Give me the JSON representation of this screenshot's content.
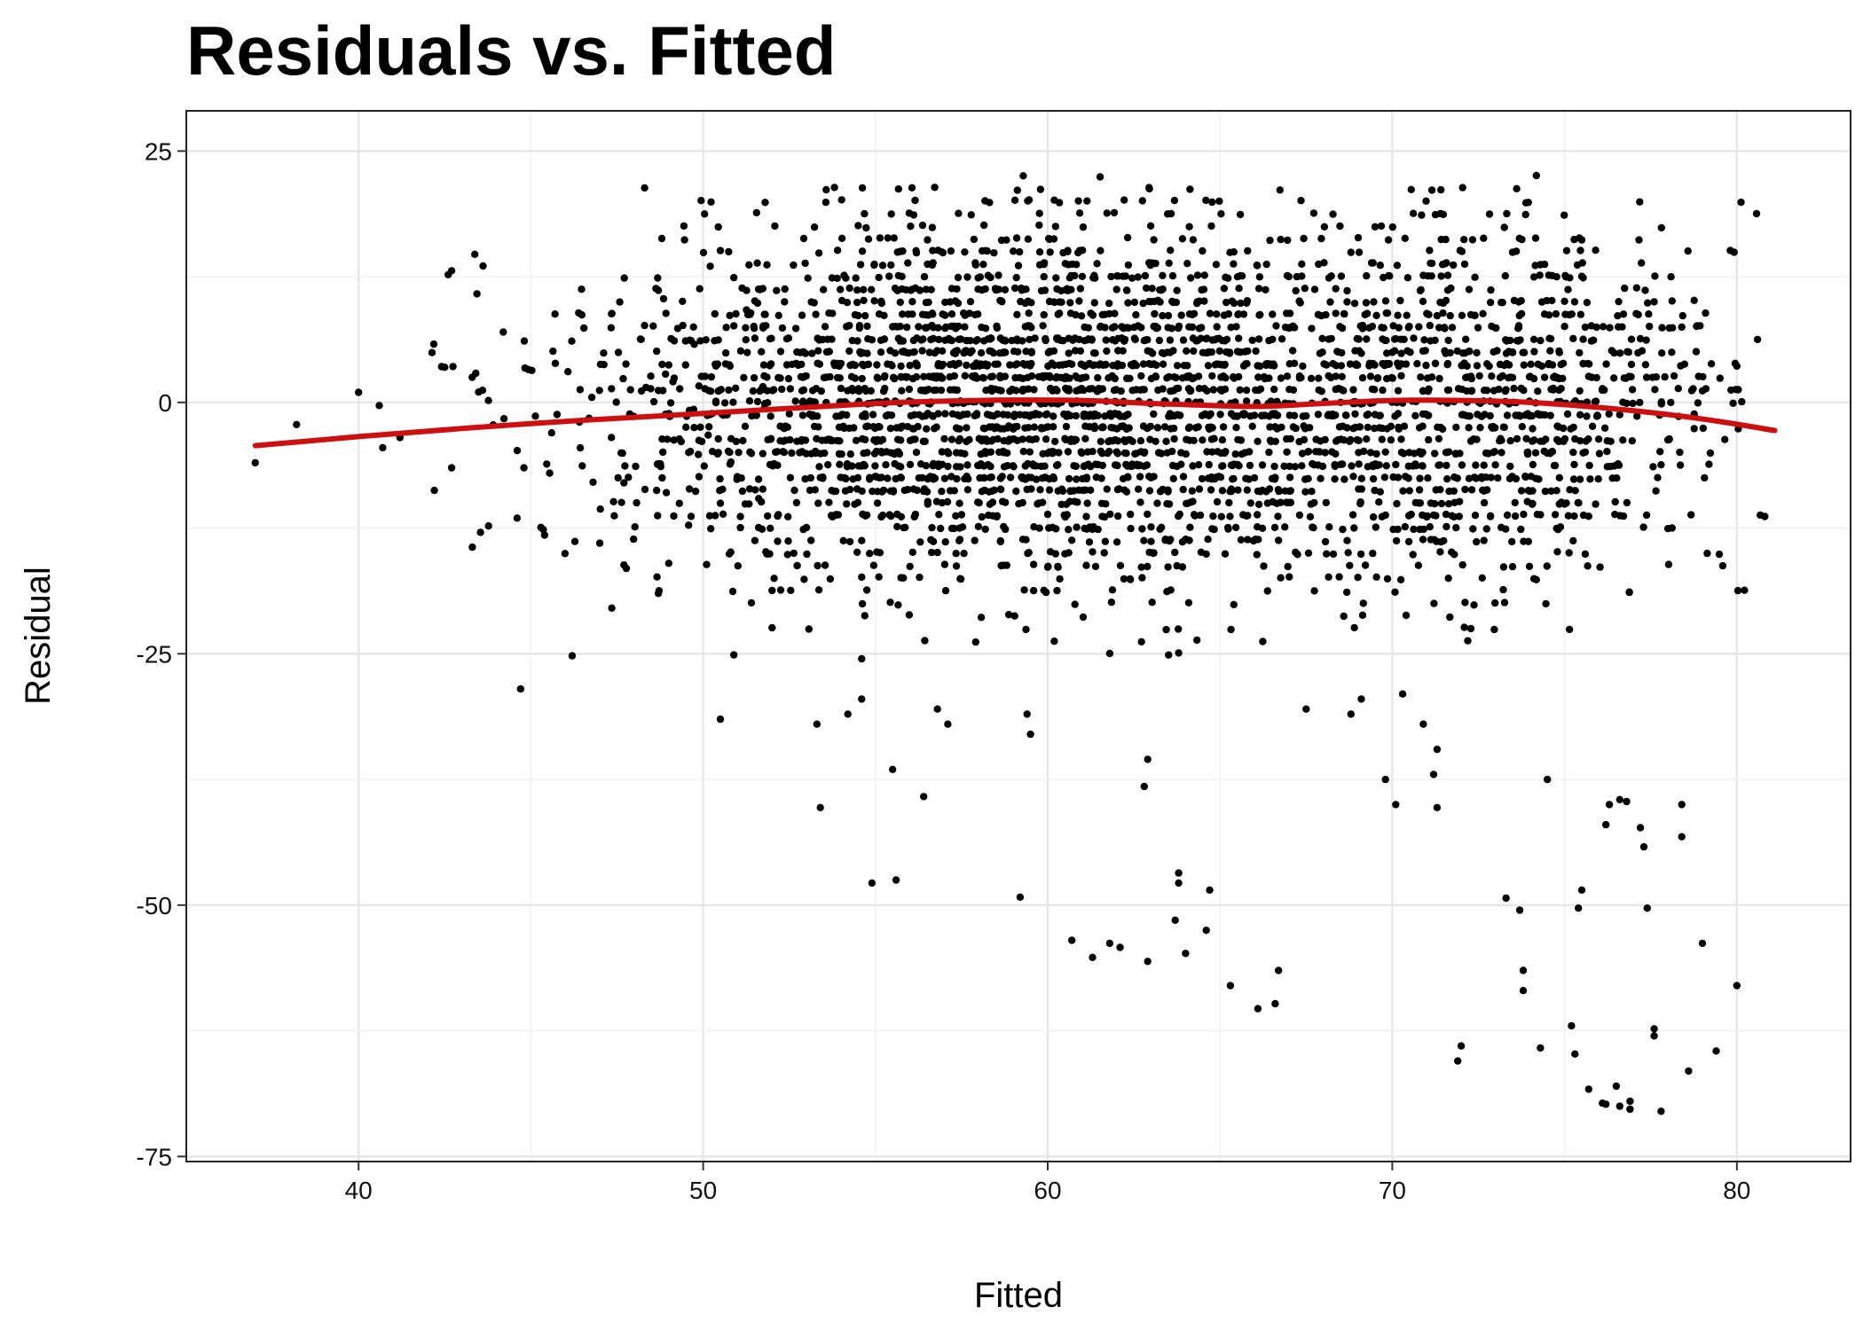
{
  "chart_data": {
    "type": "scatter",
    "title": "Residuals vs. Fitted",
    "xlabel": "Fitted",
    "ylabel": "Residual",
    "xlim": [
      35,
      83.3
    ],
    "ylim": [
      -75.5,
      29
    ],
    "x_ticks": [
      40,
      50,
      60,
      70,
      80
    ],
    "y_ticks": [
      25,
      0,
      -25,
      -50,
      -75
    ],
    "x_tick_labels": [
      "40",
      "50",
      "60",
      "70",
      "80"
    ],
    "y_tick_labels": [
      "25",
      "0",
      "-25",
      "-50",
      "-75"
    ],
    "grid": true,
    "legend": "none",
    "colors": {
      "points": "#000000",
      "smooth": "#cc1010"
    },
    "series": [
      {
        "type": "smooth",
        "x": [
          37,
          40,
          45,
          50,
          55,
          58,
          61,
          63,
          66,
          68,
          70,
          72,
          74,
          76,
          78,
          79.5,
          81.1
        ],
        "y": [
          -4.3,
          -3.4,
          -2.1,
          -1.1,
          -0.1,
          0.2,
          0.2,
          -0.1,
          -0.4,
          -0.1,
          0.2,
          0.2,
          0,
          -0.5,
          -1.2,
          -1.9,
          -2.8
        ]
      }
    ],
    "outliers": [
      [
        37,
        -6
      ],
      [
        38.2,
        -2.2
      ],
      [
        40,
        1
      ],
      [
        40.6,
        -0.3
      ],
      [
        40.7,
        -4.5
      ],
      [
        41.2,
        -3.5
      ],
      [
        42.5,
        3.5
      ],
      [
        42.7,
        -6.5
      ],
      [
        43.3,
        -14.4
      ],
      [
        43.4,
        2.9
      ],
      [
        44.2,
        7
      ],
      [
        44.6,
        -11.5
      ],
      [
        44.7,
        -28.5
      ],
      [
        44.8,
        -6.5
      ],
      [
        45.4,
        -13.2
      ],
      [
        46.2,
        -25.2
      ],
      [
        47,
        -14
      ],
      [
        47.7,
        -8
      ],
      [
        48.7,
        -19
      ],
      [
        49,
        -16
      ],
      [
        50.5,
        -31.5
      ],
      [
        53.3,
        -32
      ],
      [
        53.4,
        -40.3
      ],
      [
        54.2,
        -31
      ],
      [
        54.6,
        -29.5
      ],
      [
        54.6,
        -25.5
      ],
      [
        54.9,
        -47.8
      ],
      [
        55.5,
        -36.5
      ],
      [
        55.6,
        -47.5
      ],
      [
        56.4,
        -39.2
      ],
      [
        56.8,
        -30.5
      ],
      [
        57.1,
        -32
      ],
      [
        59.2,
        -49.2
      ],
      [
        59.4,
        -31
      ],
      [
        59.5,
        -33
      ],
      [
        60.7,
        -53.5
      ],
      [
        61.3,
        -55.2
      ],
      [
        61.8,
        -53.8
      ],
      [
        62.1,
        -54.2
      ],
      [
        62.9,
        -55.6
      ],
      [
        62.9,
        -35.5
      ],
      [
        62.8,
        -38.2
      ],
      [
        63.7,
        -51.5
      ],
      [
        63.8,
        -46.8
      ],
      [
        63.8,
        -47.8
      ],
      [
        64.0,
        -54.8
      ],
      [
        64.6,
        -52.5
      ],
      [
        64.7,
        -48.5
      ],
      [
        65.3,
        -58
      ],
      [
        66.1,
        -60.3
      ],
      [
        66.6,
        -59.8
      ],
      [
        66.7,
        -56.5
      ],
      [
        67.5,
        -30.5
      ],
      [
        68.8,
        -31
      ],
      [
        69.1,
        -29.5
      ],
      [
        69.8,
        -37.5
      ],
      [
        70.1,
        -40
      ],
      [
        70.3,
        -29
      ],
      [
        70.9,
        -32
      ],
      [
        71.2,
        -37
      ],
      [
        71.3,
        -40.3
      ],
      [
        71.3,
        -34.5
      ],
      [
        71.9,
        -65.5
      ],
      [
        72.0,
        -64
      ],
      [
        73.3,
        -49.3
      ],
      [
        73.7,
        -50.5
      ],
      [
        73.8,
        -56.5
      ],
      [
        73.8,
        -58.5
      ],
      [
        74.3,
        -64.2
      ],
      [
        74.5,
        -37.5
      ],
      [
        75.2,
        -62
      ],
      [
        75.3,
        -64.8
      ],
      [
        75.4,
        -50.3
      ],
      [
        75.5,
        -48.5
      ],
      [
        75.7,
        -68.3
      ],
      [
        76.1,
        -69.7
      ],
      [
        76.2,
        -69.8
      ],
      [
        76.5,
        -68
      ],
      [
        76.6,
        -70
      ],
      [
        76.9,
        -69.5
      ],
      [
        76.9,
        -70.3
      ],
      [
        76.3,
        -40
      ],
      [
        76.2,
        -42
      ],
      [
        76.6,
        -39.5
      ],
      [
        76.8,
        -39.7
      ],
      [
        77.2,
        -42.3
      ],
      [
        77.3,
        -44.2
      ],
      [
        77.4,
        -50.3
      ],
      [
        77.6,
        -62.3
      ],
      [
        77.6,
        -63
      ],
      [
        77.8,
        -70.5
      ],
      [
        78.4,
        -43.2
      ],
      [
        78.4,
        -40
      ],
      [
        78.6,
        -66.5
      ],
      [
        79.0,
        -53.8
      ],
      [
        79.4,
        -64.5
      ],
      [
        80.0,
        -58
      ]
    ],
    "cloud_note_free": true
  }
}
